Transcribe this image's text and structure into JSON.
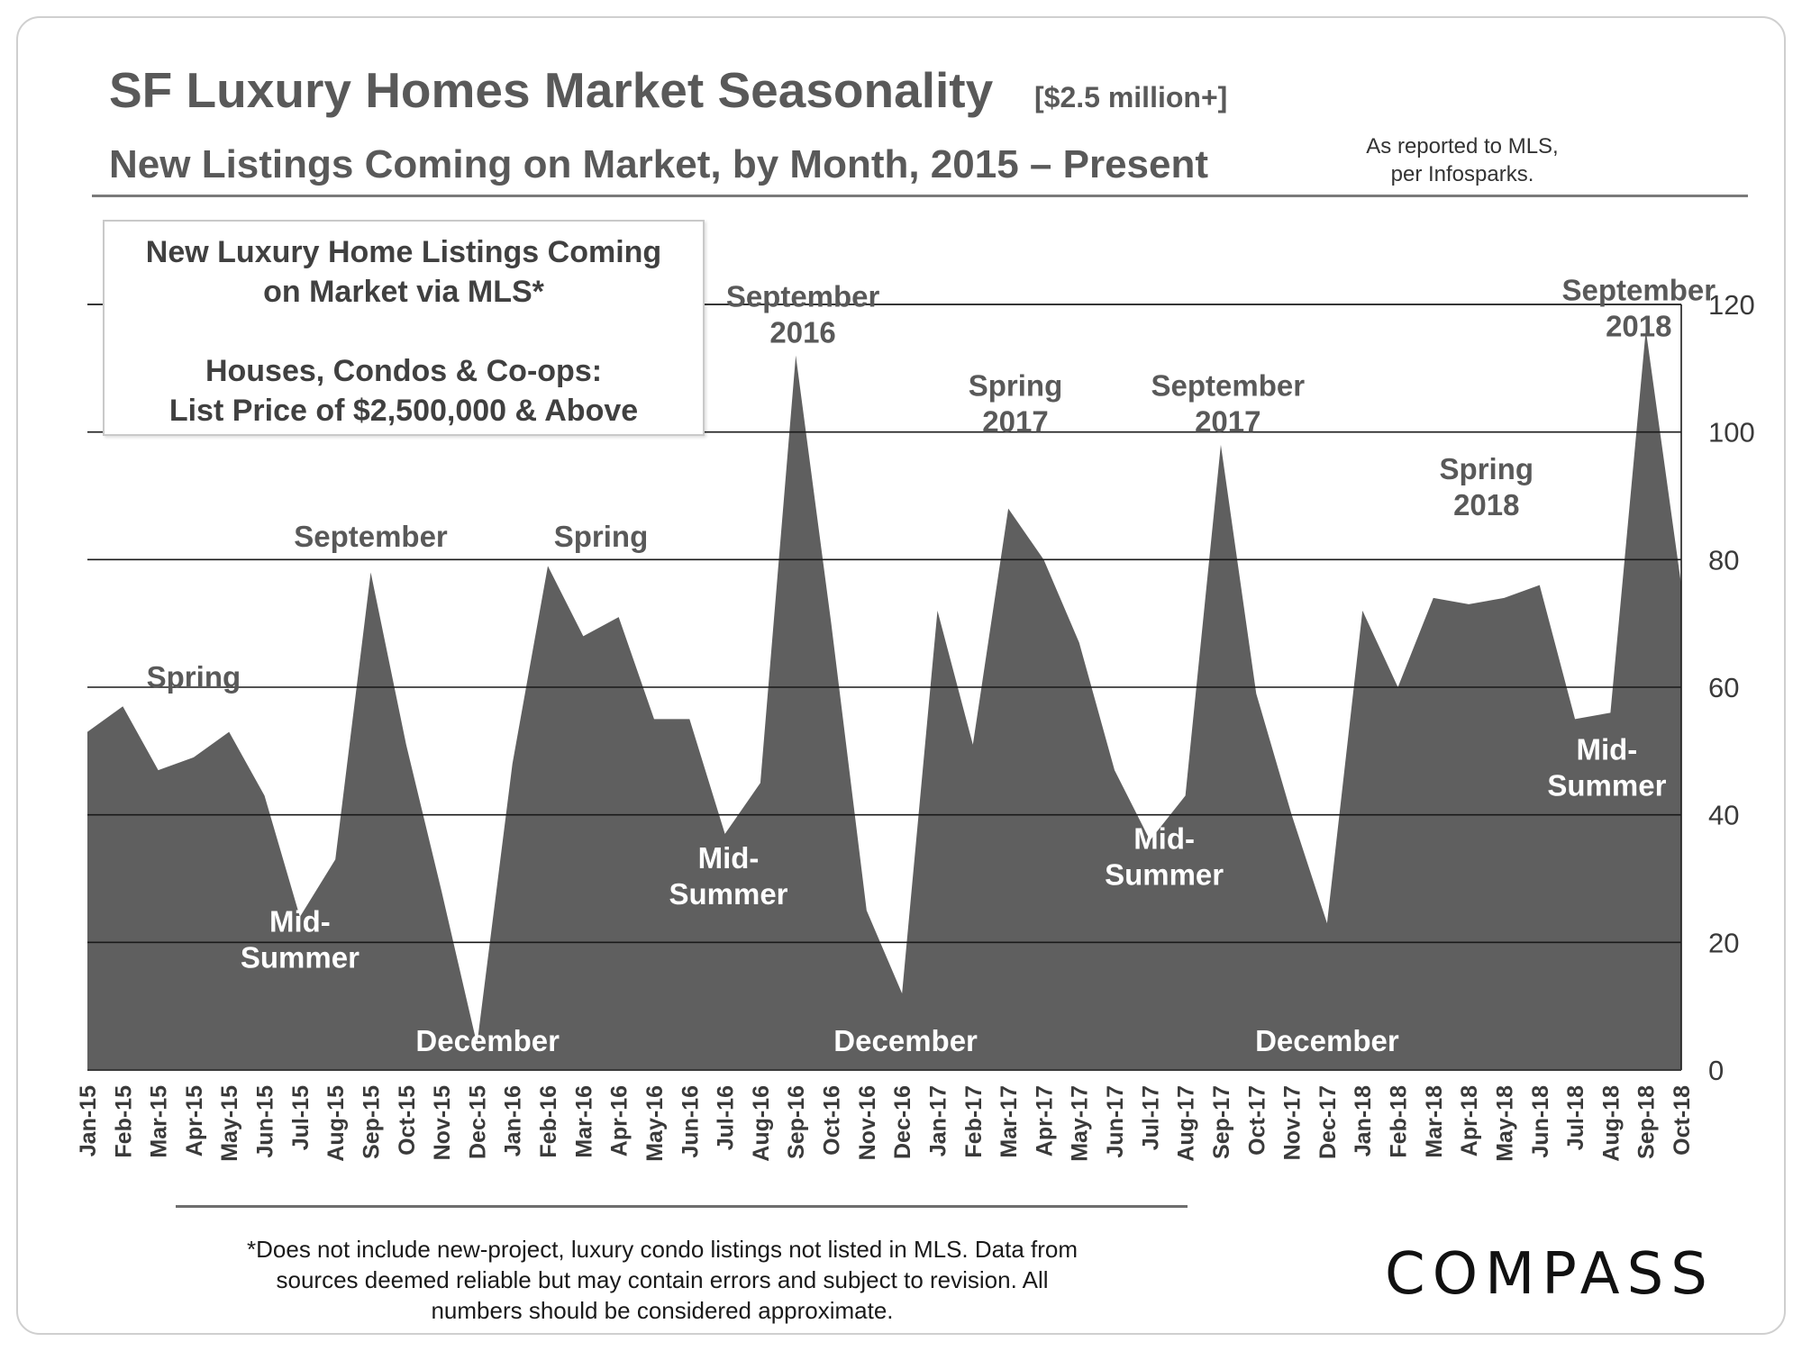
{
  "header": {
    "title": "SF Luxury Homes Market Seasonality",
    "title_bracket": "[$2.5 million+]",
    "subtitle": "New Listings Coming on Market, by Month, 2015 – Present",
    "source_line1": "As reported to MLS,",
    "source_line2": "per Infosparks."
  },
  "legend_box": {
    "line1": "New Luxury Home Listings Coming",
    "line2": "on Market via MLS*",
    "line3": "Houses, Condos & Co-ops:",
    "line4": "List Price of $2,500,000 & Above"
  },
  "footer": {
    "footnote_line1": "*Does not include new-project, luxury condo listings not listed in MLS. Data from",
    "footnote_line2": "sources deemed reliable but may contain errors and subject to revision.  All",
    "footnote_line3": "numbers should be considered approximate.",
    "logo": "COMPASS"
  },
  "colors": {
    "area_fill": "#5f5f5f",
    "gridline": "#1a1a1a",
    "title_text": "#595959"
  },
  "chart_data": {
    "type": "area",
    "title": "",
    "xlabel": "",
    "ylabel": "",
    "ylim": [
      0,
      120
    ],
    "yticks": [
      0,
      20,
      40,
      60,
      80,
      100,
      120
    ],
    "y_axis_side": "right",
    "grid": true,
    "categories": [
      "Jan-15",
      "Feb-15",
      "Mar-15",
      "Apr-15",
      "May-15",
      "Jun-15",
      "Jul-15",
      "Aug-15",
      "Sep-15",
      "Oct-15",
      "Nov-15",
      "Dec-15",
      "Jan-16",
      "Feb-16",
      "Mar-16",
      "Apr-16",
      "May-16",
      "Jun-16",
      "Jul-16",
      "Aug-16",
      "Sep-16",
      "Oct-16",
      "Nov-16",
      "Dec-16",
      "Jan-17",
      "Feb-17",
      "Mar-17",
      "Apr-17",
      "May-17",
      "Jun-17",
      "Jul-17",
      "Aug-17",
      "Sep-17",
      "Oct-17",
      "Nov-17",
      "Dec-17",
      "Jan-18",
      "Feb-18",
      "Mar-18",
      "Apr-18",
      "May-18",
      "Jun-18",
      "Jul-18",
      "Aug-18",
      "Sep-18",
      "Oct-18"
    ],
    "values": [
      53,
      57,
      47,
      49,
      53,
      43,
      24,
      33,
      78,
      51,
      28,
      4,
      48,
      79,
      68,
      71,
      55,
      55,
      37,
      45,
      112,
      70,
      25,
      12,
      72,
      51,
      88,
      80,
      67,
      47,
      36,
      43,
      98,
      59,
      40,
      23,
      72,
      60,
      74,
      73,
      74,
      76,
      55,
      56,
      116,
      76
    ],
    "annotations": [
      {
        "lines": [
          "Spring"
        ],
        "x_index": 3,
        "y": 60,
        "style": "dark"
      },
      {
        "lines": [
          "Mid-",
          "Summer"
        ],
        "x_index": 6,
        "y": 16,
        "style": "light"
      },
      {
        "lines": [
          "September"
        ],
        "x_index": 8,
        "y": 82,
        "style": "dark"
      },
      {
        "lines": [
          "December"
        ],
        "x_index": 11.3,
        "y": 3,
        "style": "light"
      },
      {
        "lines": [
          "Spring"
        ],
        "x_index": 14.5,
        "y": 82,
        "style": "dark"
      },
      {
        "lines": [
          "Mid-",
          "Summer"
        ],
        "x_index": 18.1,
        "y": 26,
        "style": "light"
      },
      {
        "lines": [
          "September",
          "2016"
        ],
        "x_index": 20.2,
        "y": 114,
        "style": "dark"
      },
      {
        "lines": [
          "December"
        ],
        "x_index": 23.1,
        "y": 3,
        "style": "light"
      },
      {
        "lines": [
          "Spring",
          "2017"
        ],
        "x_index": 26.2,
        "y": 100,
        "style": "dark"
      },
      {
        "lines": [
          "Mid-",
          "Summer"
        ],
        "x_index": 30.4,
        "y": 29,
        "style": "light"
      },
      {
        "lines": [
          "September",
          "2017"
        ],
        "x_index": 32.2,
        "y": 100,
        "style": "dark"
      },
      {
        "lines": [
          "December"
        ],
        "x_index": 35,
        "y": 3,
        "style": "light"
      },
      {
        "lines": [
          "Spring",
          "2018"
        ],
        "x_index": 39.5,
        "y": 87,
        "style": "dark"
      },
      {
        "lines": [
          "Mid-",
          "Summer"
        ],
        "x_index": 42.9,
        "y": 43,
        "style": "light"
      },
      {
        "lines": [
          "September",
          "2018"
        ],
        "x_index": 43.8,
        "y": 115,
        "style": "dark"
      }
    ]
  }
}
